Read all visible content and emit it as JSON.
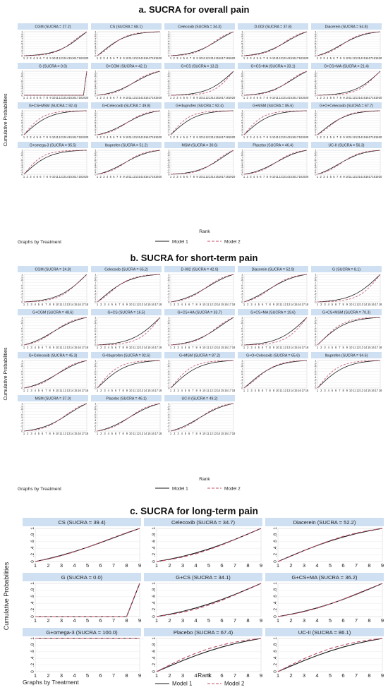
{
  "colors": {
    "model1": "#1a1a1a",
    "model2": "#c0506a",
    "strip": "#cfe0f3",
    "grid": "#e6e6e6"
  },
  "legend": {
    "model1": "Model 1",
    "model2": "Model 2"
  },
  "common": {
    "ylabel": "Cumulative Probabilities",
    "xlabel": "Rank",
    "footer": "Graphs by Treatment"
  },
  "chart_data": [
    {
      "type": "line",
      "title": "a. SUCRA for overall pain",
      "n_ranks": 20,
      "yticks": [
        "0",
        ".1",
        ".2",
        ".3",
        ".4",
        ".5",
        ".6",
        ".7",
        ".8",
        ".9",
        "1"
      ],
      "panels": [
        {
          "label": "CGM (SUCRA = 27.2)",
          "sucra": 27.2
        },
        {
          "label": "CS (SUCRA = 68.1)",
          "sucra": 68.1
        },
        {
          "label": "Celecoxib (SUCRA = 34.3)",
          "sucra": 34.3
        },
        {
          "label": "D-002 (SUCRA = 37.8)",
          "sucra": 37.8
        },
        {
          "label": "Diacerein (SUCRA = 54.8)",
          "sucra": 54.8
        },
        {
          "label": "G (SUCRA = 0.0)",
          "sucra": 0.0
        },
        {
          "label": "G+CGM (SUCRA = 42.1)",
          "sucra": 42.1
        },
        {
          "label": "G+CS (SUCRA = 13.2)",
          "sucra": 13.2
        },
        {
          "label": "G+CS+HA (SUCRA = 33.1)",
          "sucra": 33.1
        },
        {
          "label": "G+CS+MA (SUCRA = 21.4)",
          "sucra": 21.4
        },
        {
          "label": "G+CS+MSM (SUCRA = 92.4)",
          "sucra": 92.4
        },
        {
          "label": "G+Celecoxib (SUCRA = 49.8)",
          "sucra": 49.8
        },
        {
          "label": "G+Ibuprofen (SUCRA = 92.4)",
          "sucra": 92.4
        },
        {
          "label": "G+MSM (SUCRA = 85.6)",
          "sucra": 85.6
        },
        {
          "label": "G+O+Celecoxib (SUCRA = 67.7)",
          "sucra": 67.7
        },
        {
          "label": "G+omega-3 (SUCRA = 95.5)",
          "sucra": 95.5
        },
        {
          "label": "Ibuprofen (SUCRA = 51.2)",
          "sucra": 51.2
        },
        {
          "label": "MSM (SUCRA = 30.6)",
          "sucra": 30.6
        },
        {
          "label": "Placebo (SUCRA = 46.4)",
          "sucra": 46.4
        },
        {
          "label": "UC-II (SUCRA = 56.3)",
          "sucra": 56.3
        }
      ]
    },
    {
      "type": "line",
      "title": "b. SUCRA for short-term pain",
      "n_ranks": 18,
      "yticks": [
        "0",
        ".1",
        ".2",
        ".3",
        ".4",
        ".5",
        ".6",
        ".7",
        ".8",
        ".9",
        "1"
      ],
      "panels": [
        {
          "label": "CGM (SUCRA = 24.8)",
          "sucra": 24.8
        },
        {
          "label": "Celecoxib (SUCRA = 65.2)",
          "sucra": 65.2
        },
        {
          "label": "D-002 (SUCRA = 42.9)",
          "sucra": 42.9
        },
        {
          "label": "Diacerein (SUCRA = 52.9)",
          "sucra": 52.9
        },
        {
          "label": "G (SUCRA = 8.1)",
          "sucra": 8.1
        },
        {
          "label": "G+CGM (SUCRA = 48.6)",
          "sucra": 48.6
        },
        {
          "label": "G+CS (SUCRA = 16.5)",
          "sucra": 16.5
        },
        {
          "label": "G+CS+HA (SUCRA = 33.7)",
          "sucra": 33.7
        },
        {
          "label": "G+CS+MA (SUCRA = 19.6)",
          "sucra": 19.6
        },
        {
          "label": "G+CS+MSM (SUCRA = 70.3)",
          "sucra": 70.3
        },
        {
          "label": "G+Celecoxib (SUCRA = 45.3)",
          "sucra": 45.3
        },
        {
          "label": "G+Ibuprofen (SUCRA = 92.6)",
          "sucra": 92.6
        },
        {
          "label": "G+MSM (SUCRA = 87.2)",
          "sucra": 87.2
        },
        {
          "label": "G+O+Celecoxib (SUCRA = 65.6)",
          "sucra": 65.6
        },
        {
          "label": "Ibuprofen (SUCRA = 94.6)",
          "sucra": 94.6
        },
        {
          "label": "MSM (SUCRA = 37.0)",
          "sucra": 37.0
        },
        {
          "label": "Placebo (SUCRA = 46.1)",
          "sucra": 46.1
        },
        {
          "label": "UC-II (SUCRA = 49.2)",
          "sucra": 49.2
        }
      ]
    },
    {
      "type": "line",
      "title": "c. SUCRA for long-term pain",
      "n_ranks": 9,
      "yticks": [
        "0",
        ".2",
        ".4",
        ".6",
        ".8",
        "1"
      ],
      "panels": [
        {
          "label": "CS (SUCRA = 39.4)",
          "sucra": 39.4
        },
        {
          "label": "Celecoxib (SUCRA = 34.7)",
          "sucra": 34.7
        },
        {
          "label": "Diacerein (SUCRA = 52.2)",
          "sucra": 52.2
        },
        {
          "label": "G (SUCRA = 0.0)",
          "sucra": 0.0
        },
        {
          "label": "G+CS (SUCRA = 34.1)",
          "sucra": 34.1
        },
        {
          "label": "G+CS+MA (SUCRA = 36.2)",
          "sucra": 36.2
        },
        {
          "label": "G+omega-3 (SUCRA = 100.0)",
          "sucra": 100.0
        },
        {
          "label": "Placebo (SUCRA = 67.4)",
          "sucra": 67.4
        },
        {
          "label": "UC-II (SUCRA = 86.1)",
          "sucra": 86.1
        }
      ]
    }
  ]
}
